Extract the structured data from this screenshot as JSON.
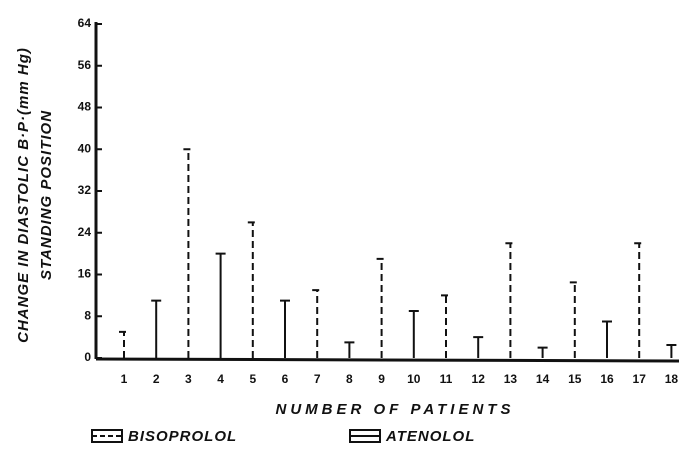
{
  "chart_data": {
    "type": "bar",
    "ylabel": [
      "CHANGE IN DIASTOLIC B·P·(mm Hg)",
      "STANDING POSITION"
    ],
    "xlabel": "NUMBER OF PATIENTS",
    "categories": [
      "1",
      "2",
      "3",
      "4",
      "5",
      "6",
      "7",
      "8",
      "9",
      "10",
      "11",
      "12",
      "13",
      "14",
      "15",
      "16",
      "17",
      "18"
    ],
    "series": [
      {
        "name": "BISOPROLOL",
        "color": "#111111",
        "style": "dashed",
        "values": [
          5,
          null,
          40,
          null,
          26,
          null,
          13,
          null,
          19,
          null,
          12,
          null,
          22,
          null,
          14.5,
          null,
          22,
          null
        ]
      },
      {
        "name": "ATENOLOL",
        "color": "#111111",
        "style": "solid",
        "values": [
          null,
          11,
          null,
          20,
          null,
          11,
          null,
          3,
          null,
          9,
          null,
          4,
          null,
          2,
          null,
          7,
          null,
          2.5
        ]
      }
    ],
    "ylim": [
      0,
      64
    ],
    "yticks": [
      0,
      8,
      16,
      24,
      32,
      40,
      48,
      56,
      64
    ]
  }
}
